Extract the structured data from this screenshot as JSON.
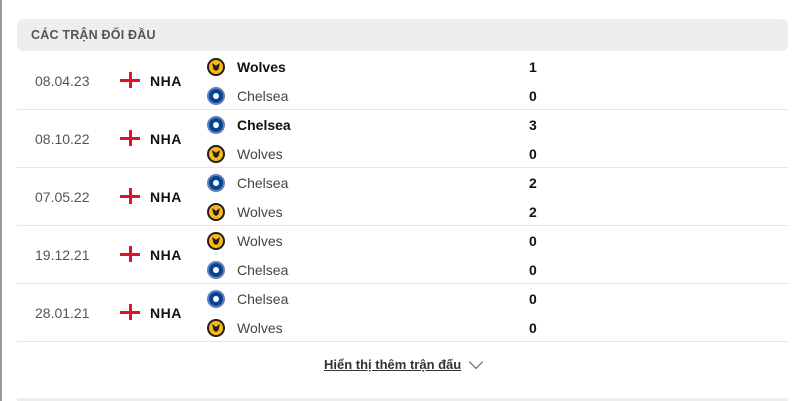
{
  "header": {
    "title": "CÁC TRẬN ĐỐI ĐẦU"
  },
  "matches": [
    {
      "date": "08.04.23",
      "league": "NHA",
      "teams": [
        {
          "name": "Wolves",
          "logo": "wolves",
          "score": "1",
          "winner": true
        },
        {
          "name": "Chelsea",
          "logo": "chelsea",
          "score": "0",
          "winner": false
        }
      ]
    },
    {
      "date": "08.10.22",
      "league": "NHA",
      "teams": [
        {
          "name": "Chelsea",
          "logo": "chelsea",
          "score": "3",
          "winner": true
        },
        {
          "name": "Wolves",
          "logo": "wolves",
          "score": "0",
          "winner": false
        }
      ]
    },
    {
      "date": "07.05.22",
      "league": "NHA",
      "teams": [
        {
          "name": "Chelsea",
          "logo": "chelsea",
          "score": "2",
          "winner": false
        },
        {
          "name": "Wolves",
          "logo": "wolves",
          "score": "2",
          "winner": false
        }
      ]
    },
    {
      "date": "19.12.21",
      "league": "NHA",
      "teams": [
        {
          "name": "Wolves",
          "logo": "wolves",
          "score": "0",
          "winner": false
        },
        {
          "name": "Chelsea",
          "logo": "chelsea",
          "score": "0",
          "winner": false
        }
      ]
    },
    {
      "date": "28.01.21",
      "league": "NHA",
      "teams": [
        {
          "name": "Chelsea",
          "logo": "chelsea",
          "score": "0",
          "winner": false
        },
        {
          "name": "Wolves",
          "logo": "wolves",
          "score": "0",
          "winner": false
        }
      ]
    }
  ],
  "show_more": "Hiển thị thêm trận đấu",
  "colors": {
    "flag_red": "#e3112a",
    "header_bg": "#eeeeee"
  }
}
